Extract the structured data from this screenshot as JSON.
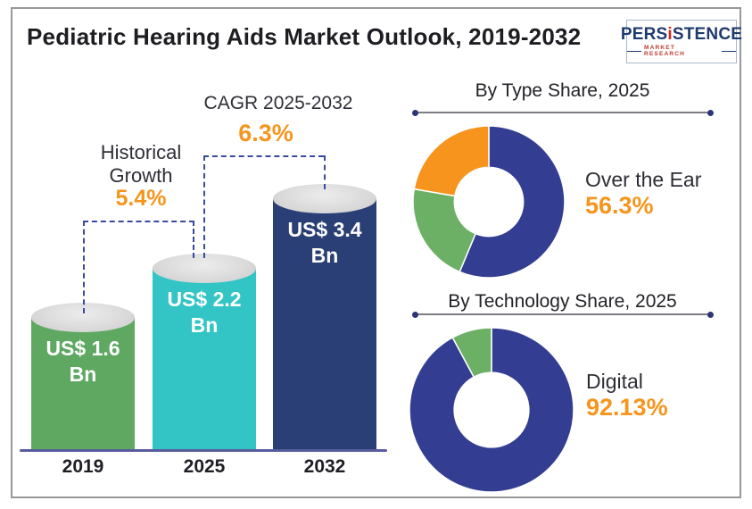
{
  "header": {
    "title": "Pediatric Hearing Aids Market Outlook, 2019-2032",
    "logo": {
      "brand_pre": "PERS",
      "brand_i": "i",
      "brand_post": "STENCE",
      "tagline": "MARKET RESEARCH"
    }
  },
  "palette": {
    "bar_green": "#5FA862",
    "bar_teal": "#33C4C6",
    "bar_navy": "#2A3F76",
    "donut_blue": "#333E92",
    "donut_green": "#6CB065",
    "donut_orange": "#F7941D",
    "accent_orange": "#F5951D",
    "axis_line": "#585C9E",
    "dashed_bracket": "#3B4A9E",
    "cylinder_cap_gray": "#D9D9D9",
    "text_dark": "#2E2E36",
    "brand_navy": "#1E3A6E",
    "brand_red": "#C03A2B"
  },
  "chart_data": [
    {
      "type": "bar",
      "title": "Pediatric Hearing Aids Market Outlook, 2019-2032",
      "categories": [
        "2019",
        "2025",
        "2032"
      ],
      "values": [
        1.6,
        2.2,
        3.4
      ],
      "unit": "US$ Bn",
      "value_labels": [
        "US$ 1.6\nBn",
        "US$ 2.2\nBn",
        "US$ 3.4\nBn"
      ],
      "bar_colors": [
        "#5FA862",
        "#33C4C6",
        "#2A3F76"
      ],
      "bar_style": "3d-cylinder",
      "ylim": [
        0,
        3.4
      ],
      "grid": false,
      "annotations": [
        {
          "label": "Historical Growth",
          "value": "5.4%",
          "span": [
            "2019",
            "2025"
          ]
        },
        {
          "label": "CAGR 2025-2032",
          "value": "6.3%",
          "span": [
            "2025",
            "2032"
          ]
        }
      ]
    },
    {
      "type": "pie",
      "subtype": "donut",
      "title": "By Type Share, 2025",
      "segments": [
        {
          "name": "Over the Ear",
          "value": 56.3,
          "color": "#333E92"
        },
        {
          "name": "other-segment-green",
          "value": 21.4,
          "color": "#6CB065"
        },
        {
          "name": "other-segment-orange",
          "value": 22.3,
          "color": "#F7941D"
        }
      ],
      "callout": {
        "label": "Over the Ear",
        "value": "56.3%"
      },
      "legend_position": "right"
    },
    {
      "type": "pie",
      "subtype": "donut",
      "title": "By Technology Share, 2025",
      "segments": [
        {
          "name": "Digital",
          "value": 92.13,
          "color": "#333E92"
        },
        {
          "name": "other-segment-green",
          "value": 7.87,
          "color": "#6CB065"
        }
      ],
      "callout": {
        "label": "Digital",
        "value": "92.13%"
      },
      "legend_position": "right"
    }
  ]
}
